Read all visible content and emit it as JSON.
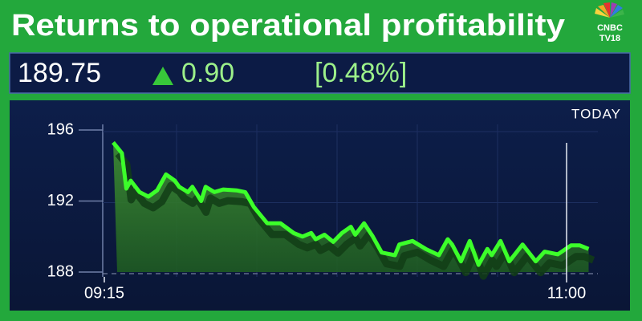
{
  "header": {
    "title": "Returns to operational profitability",
    "logo": {
      "line1": "CNBC",
      "line2": "TV18"
    }
  },
  "ticker": {
    "price": "189.75",
    "change": "0.90",
    "change_pct": "[0.48%]"
  },
  "chart_data": {
    "type": "area",
    "period_label": "TODAY",
    "x": [
      557,
      559,
      560,
      561,
      563,
      565,
      567,
      569,
      571,
      572,
      574,
      575,
      577,
      578,
      580,
      582,
      585,
      587,
      589,
      592,
      595,
      598,
      600,
      602,
      603,
      605,
      607,
      609,
      611,
      612,
      614,
      616,
      618,
      621,
      622,
      625,
      628,
      631,
      633,
      634,
      636,
      638,
      640,
      642,
      643,
      645,
      647,
      650,
      653,
      655,
      658,
      661,
      663,
      665
    ],
    "series": [
      {
        "color": "#3cff2a",
        "values": [
          195.3,
          194.7,
          192.7,
          193.15,
          192.5,
          192.25,
          192.6,
          193.5,
          193.15,
          192.8,
          192.5,
          192.8,
          192.0,
          192.8,
          192.5,
          192.65,
          192.6,
          192.5,
          191.65,
          190.75,
          190.75,
          190.2,
          190.0,
          190.2,
          189.85,
          190.1,
          189.7,
          190.2,
          190.55,
          190.1,
          190.75,
          190.0,
          189.1,
          188.95,
          189.55,
          189.75,
          189.3,
          188.95,
          189.85,
          189.55,
          188.6,
          189.75,
          188.4,
          189.3,
          188.95,
          189.75,
          188.6,
          189.55,
          188.6,
          189.15,
          189.0,
          189.5,
          189.5,
          189.3
        ]
      }
    ],
    "xlim": [
      555,
      666
    ],
    "xticks": [
      {
        "value": 555,
        "label": "09:15"
      },
      {
        "value": 660,
        "label": "11:00"
      }
    ],
    "ylim": [
      188,
      196
    ],
    "yticks": [
      188,
      192,
      196
    ],
    "grid": true
  }
}
